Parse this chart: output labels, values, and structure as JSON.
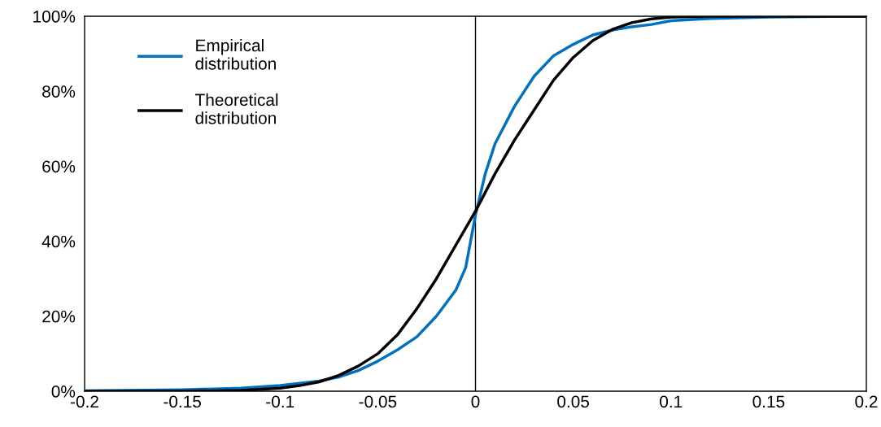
{
  "chart_data": {
    "type": "line",
    "x": [
      -0.2,
      -0.15,
      -0.12,
      -0.1,
      -0.09,
      -0.08,
      -0.07,
      -0.06,
      -0.05,
      -0.04,
      -0.03,
      -0.02,
      -0.01,
      -0.005,
      0,
      0.005,
      0.01,
      0.02,
      0.03,
      0.04,
      0.05,
      0.06,
      0.07,
      0.08,
      0.09,
      0.1,
      0.12,
      0.15,
      0.2
    ],
    "series": [
      {
        "name": "Empirical\ndistribution",
        "color": "#0070c0",
        "values": [
          0.1,
          0.4,
          0.8,
          1.5,
          2.1,
          2.7,
          3.8,
          5.5,
          8,
          11,
          14.5,
          20,
          27,
          33,
          47,
          58,
          66,
          76,
          84,
          89.5,
          92.5,
          95,
          96.3,
          97.2,
          97.8,
          98.8,
          99.4,
          99.8,
          100
        ]
      },
      {
        "name": "Theoretical\ndistribution",
        "color": "#000000",
        "values": [
          0,
          0,
          0.2,
          0.8,
          1.5,
          2.5,
          4.2,
          6.7,
          10,
          15,
          22,
          30,
          39,
          43.5,
          48,
          53,
          58,
          67,
          75,
          83,
          89,
          93.5,
          96.5,
          98.3,
          99.3,
          99.8,
          100,
          100,
          100
        ]
      }
    ],
    "xlim": [
      -0.2,
      0.2
    ],
    "xticks": [
      -0.2,
      -0.15,
      -0.1,
      -0.05,
      0,
      0.05,
      0.1,
      0.15,
      0.2
    ],
    "ylim": [
      0,
      100
    ],
    "yticks": [
      {
        "value": 0,
        "label": "0%"
      },
      {
        "value": 20,
        "label": "20%"
      },
      {
        "value": 40,
        "label": "40%"
      },
      {
        "value": 60,
        "label": "60%"
      },
      {
        "value": 80,
        "label": "80%"
      },
      {
        "value": 100,
        "label": "100%"
      }
    ],
    "ref_lines": [
      {
        "axis": "x",
        "value": 0,
        "color": "#000000"
      }
    ],
    "grid": false,
    "legend": "top left",
    "marker": "none",
    "line_style": "solid"
  }
}
